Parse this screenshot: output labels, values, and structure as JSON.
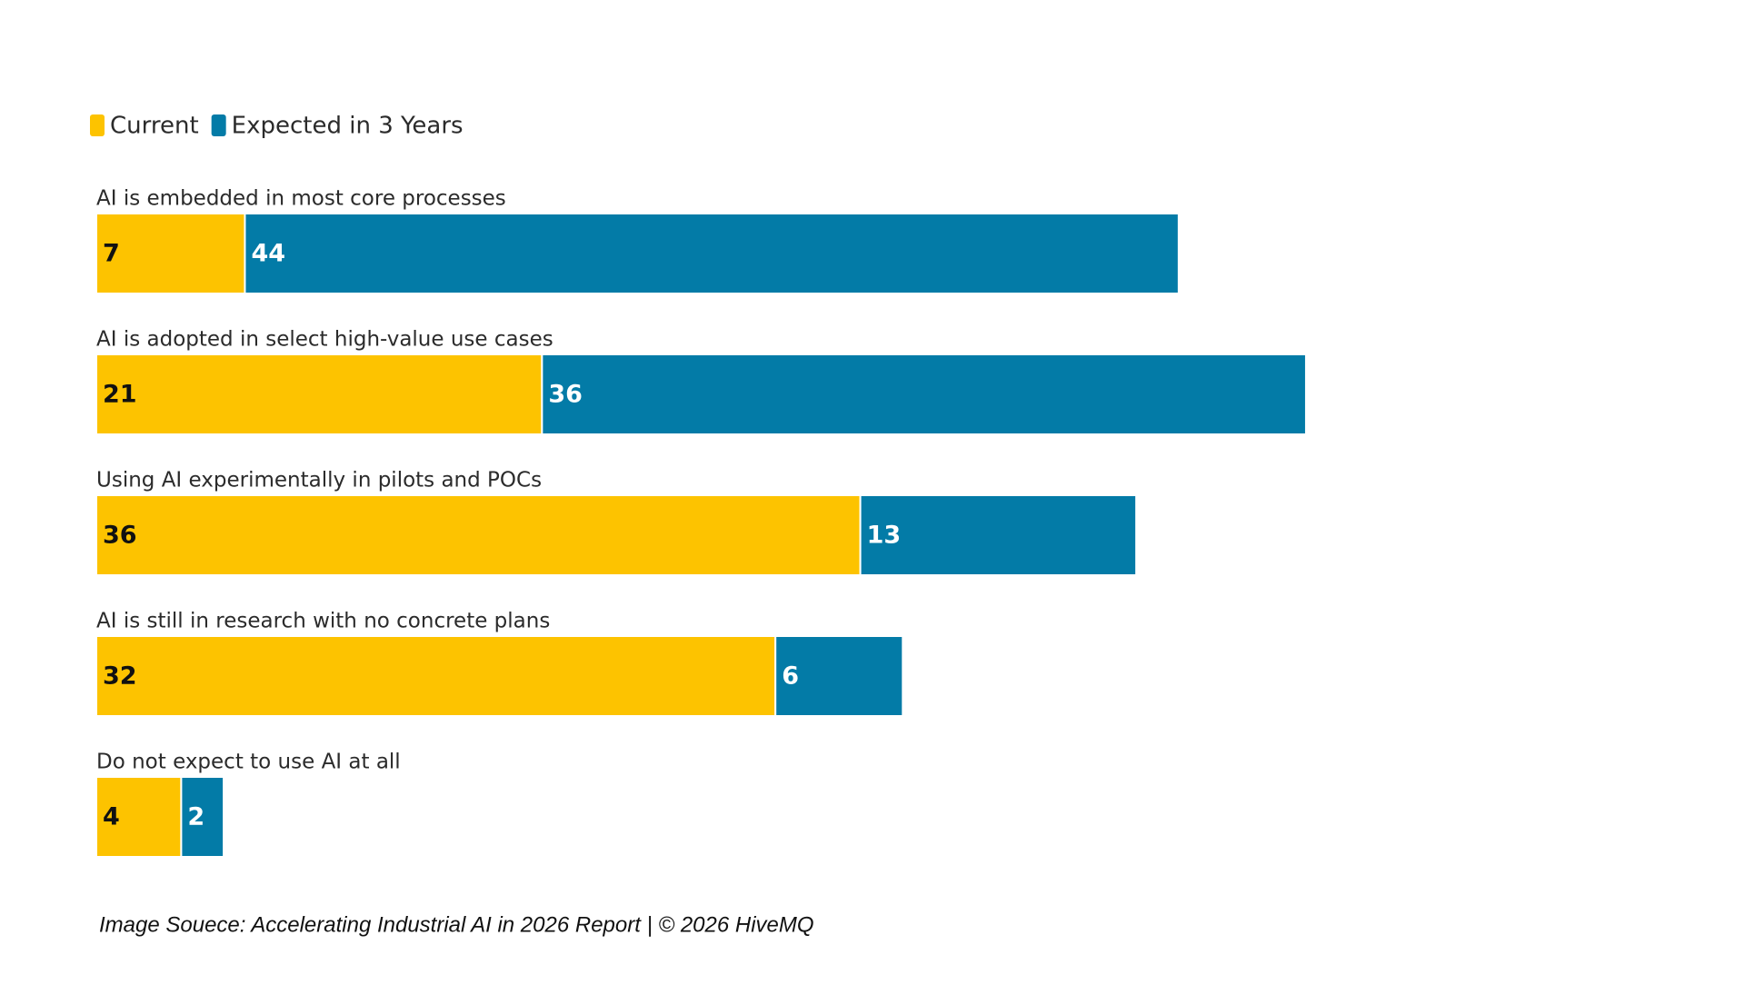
{
  "chart_data": {
    "type": "bar",
    "orientation": "horizontal",
    "stacked": true,
    "categories": [
      "AI is embedded in most core processes",
      "AI is adopted in select high-value use cases",
      "Using AI experimentally in pilots and POCs",
      "AI is still in research with no concrete plans",
      "Do not expect to use AI at all"
    ],
    "series": [
      {
        "name": "Current",
        "color": "#FDC300",
        "values": [
          7,
          21,
          36,
          32,
          4
        ]
      },
      {
        "name": "Expected in 3 Years",
        "color": "#037BA7",
        "values": [
          44,
          36,
          13,
          6,
          2
        ]
      }
    ],
    "legend": "top-left",
    "source": "Image Souece: Accelerating Industrial AI in 2026 Report | © 2026 HiveMQ"
  }
}
